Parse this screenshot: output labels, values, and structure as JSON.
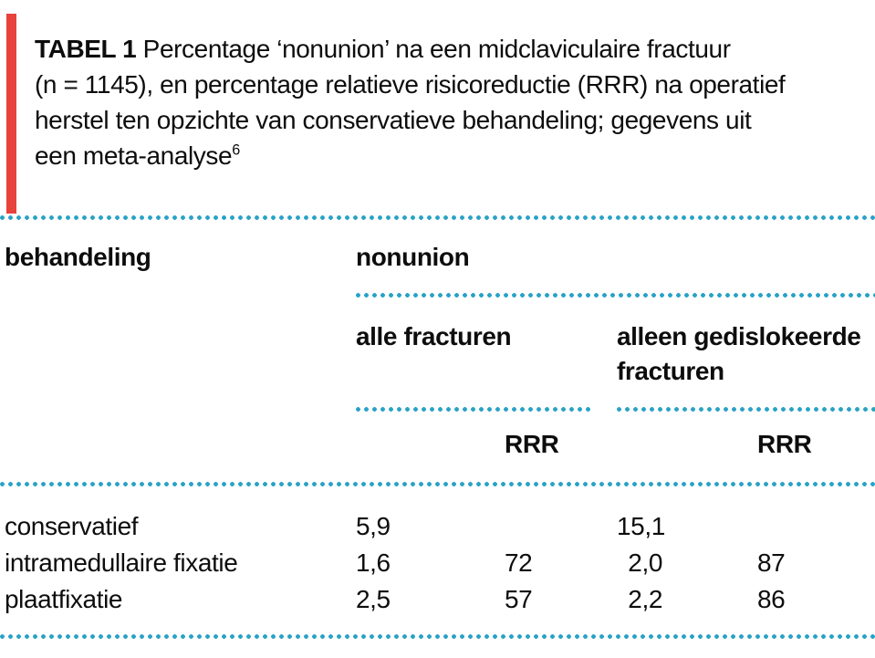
{
  "accent_colors": {
    "red_bar": "#e7423b",
    "dotted_rule": "#29a2c6",
    "text": "#0d0d0d"
  },
  "title": {
    "label": "TABEL 1",
    "lines": [
      " Percentage ‘nonunion’ na een midclaviculaire fractuur",
      "(n = 1145), en percentage relatieve risicoreductie (RRR) na operatief",
      "herstel ten opzichte van conservatieve behandeling; gegevens uit",
      "een meta-analyse"
    ],
    "footnote_ref": "6"
  },
  "table": {
    "headers": {
      "treatment": "behandeling",
      "nonunion_group": "nonunion",
      "all_fractures": "alle fracturen",
      "displaced_only": "alleen gedislokeerde fracturen",
      "rrr_all": "RRR",
      "rrr_displaced": "RRR"
    },
    "rows": [
      {
        "treatment": "conservatief",
        "all_value": "5,9",
        "all_rrr": "",
        "displaced_value": "15,1",
        "displaced_rrr": ""
      },
      {
        "treatment": "intramedullaire fixatie",
        "all_value": "1,6",
        "all_rrr": "72",
        "displaced_value": "2,0",
        "displaced_rrr": "87"
      },
      {
        "treatment": "plaatfixatie",
        "all_value": "2,5",
        "all_rrr": "57",
        "displaced_value": "2,2",
        "displaced_rrr": "86"
      }
    ]
  }
}
